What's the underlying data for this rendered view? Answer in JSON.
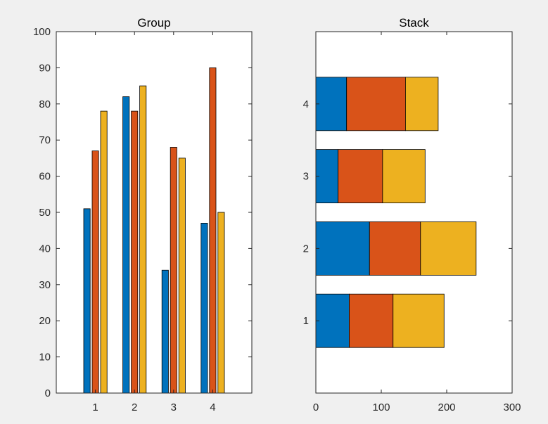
{
  "colors": {
    "series1": "#0072BD",
    "series2": "#D95319",
    "series3": "#EDB120",
    "axes_bg": "#FFFFFF",
    "figure_bg": "#F0F0F0"
  },
  "chart_data": [
    {
      "type": "bar",
      "orientation": "vertical",
      "mode": "grouped",
      "title": "Group",
      "categories": [
        "1",
        "2",
        "3",
        "4"
      ],
      "series": [
        {
          "values": [
            51,
            82,
            34,
            47
          ]
        },
        {
          "values": [
            67,
            78,
            68,
            90
          ]
        },
        {
          "values": [
            78,
            85,
            65,
            50
          ]
        }
      ],
      "xlim": [
        0,
        5
      ],
      "ylim": [
        0,
        100
      ],
      "yticks": [
        0,
        10,
        20,
        30,
        40,
        50,
        60,
        70,
        80,
        90,
        100
      ],
      "grid": false
    },
    {
      "type": "bar",
      "orientation": "horizontal",
      "mode": "stacked",
      "title": "Stack",
      "categories": [
        "1",
        "2",
        "3",
        "4"
      ],
      "series": [
        {
          "values": [
            51,
            82,
            34,
            47
          ]
        },
        {
          "values": [
            67,
            78,
            68,
            90
          ]
        },
        {
          "values": [
            78,
            85,
            65,
            50
          ]
        }
      ],
      "xlim": [
        0,
        300
      ],
      "ylim": [
        0,
        5
      ],
      "xticks": [
        0,
        100,
        200,
        300
      ],
      "grid": false
    }
  ]
}
